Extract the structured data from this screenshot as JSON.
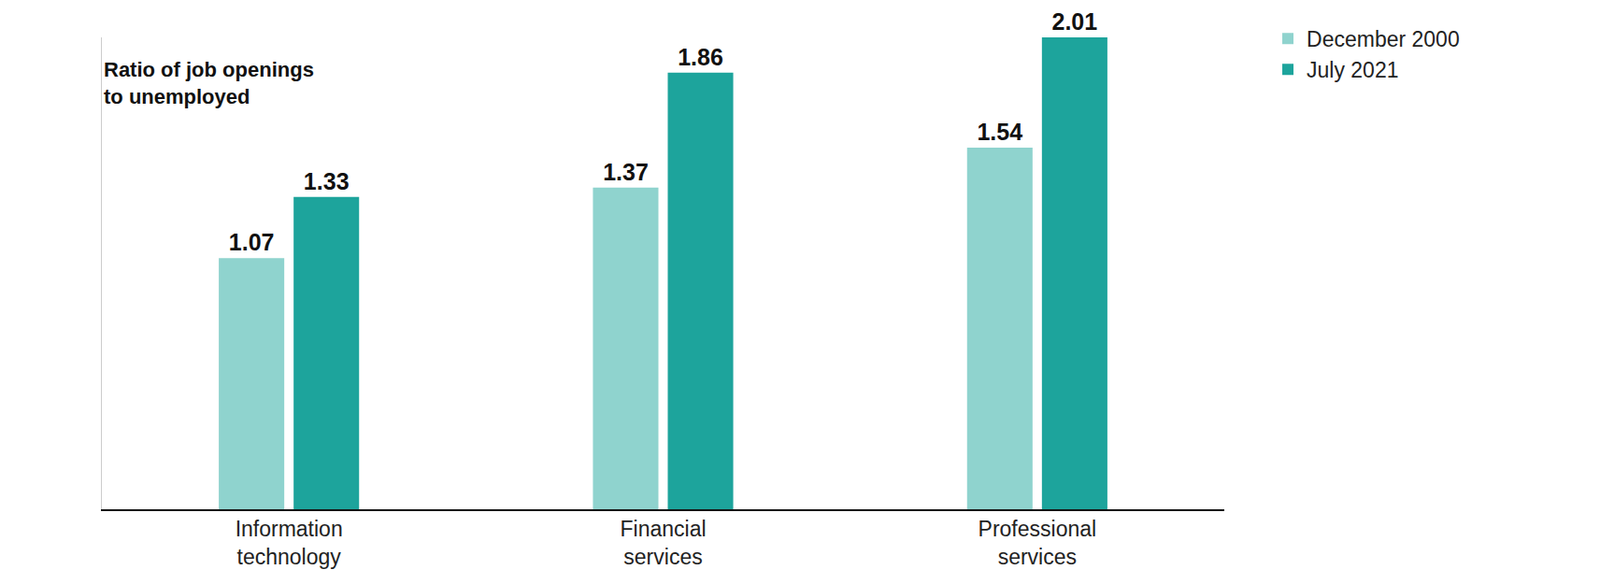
{
  "chart_data": {
    "type": "bar",
    "ylabel": "Ratio of job openings\nto unemployed",
    "categories": [
      "Information\ntechnology",
      "Financial\nservices",
      "Professional\nservices"
    ],
    "series": [
      {
        "name": "December 2000",
        "color": "#8fd3ce",
        "values": [
          1.07,
          1.37,
          1.54
        ]
      },
      {
        "name": "July 2021",
        "color": "#1da49c",
        "values": [
          1.33,
          1.86,
          2.01
        ]
      }
    ],
    "ylim": [
      0,
      2.01
    ],
    "yticks": [],
    "grid": false,
    "legend": "top right",
    "data_labels": true,
    "tick_labels": "x"
  }
}
